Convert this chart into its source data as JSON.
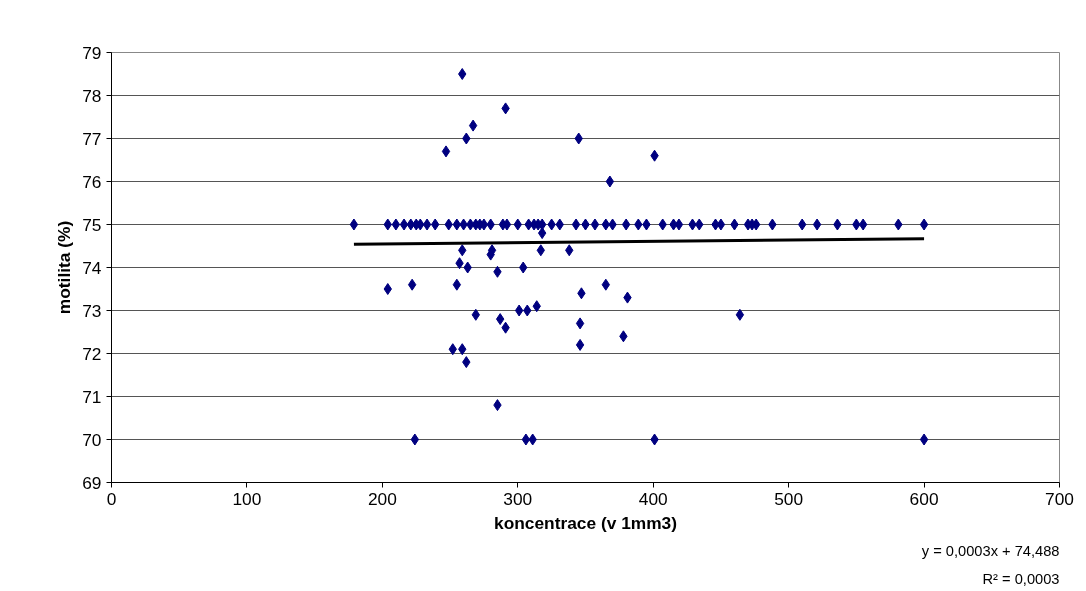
{
  "chart_data": {
    "type": "scatter",
    "xlabel": "koncentrace (v 1mm3)",
    "ylabel": "motilita (%)",
    "xlim": [
      0,
      700
    ],
    "xticks": [
      0,
      100,
      200,
      300,
      400,
      500,
      600,
      700
    ],
    "ylim": [
      69,
      79
    ],
    "yticks": [
      69,
      70,
      71,
      72,
      73,
      74,
      75,
      76,
      77,
      78,
      79
    ],
    "grid": "y",
    "marker": "diamond",
    "annotations": [
      "y = 0,0003x + 74,488",
      "R² = 0,0003"
    ],
    "series": [
      {
        "color": "#000080",
        "x": [
          179,
          204,
          210,
          216,
          221,
          225,
          228,
          233,
          239,
          249,
          255,
          260,
          265,
          269,
          272,
          275,
          280,
          289,
          292,
          300,
          308,
          312,
          315,
          318,
          325,
          331,
          343,
          350,
          357,
          365,
          370,
          380,
          389,
          395,
          407,
          415,
          419,
          429,
          434,
          446,
          450,
          460,
          470,
          473,
          476,
          488,
          510,
          521,
          536,
          550,
          555,
          581,
          600,
          259,
          267,
          262,
          247,
          291,
          345,
          401,
          368,
          259,
          257,
          263,
          204,
          222,
          255,
          252,
          259,
          262,
          224,
          281,
          280,
          285,
          304,
          317,
          318,
          338,
          269,
          287,
          291,
          301,
          307,
          314,
          347,
          346,
          346,
          365,
          381,
          378,
          285,
          306,
          311,
          401,
          464,
          600
        ],
        "values": [
          75,
          75,
          75,
          75,
          75,
          75,
          75,
          75,
          75,
          75,
          75,
          75,
          75,
          75,
          75,
          75,
          75,
          75,
          75,
          75,
          75,
          75,
          75,
          75,
          75,
          75,
          75,
          75,
          75,
          75,
          75,
          75,
          75,
          75,
          75,
          75,
          75,
          75,
          75,
          75,
          75,
          75,
          75,
          75,
          75,
          75,
          75,
          75,
          75,
          75,
          75,
          75,
          75,
          78.5,
          77.3,
          77.0,
          76.7,
          77.7,
          77.0,
          76.6,
          76.0,
          74.4,
          74.1,
          74.0,
          73.5,
          73.6,
          73.6,
          72.1,
          72.1,
          71.8,
          70.0,
          74.4,
          74.3,
          73.9,
          74.0,
          74.4,
          74.8,
          74.4,
          72.9,
          72.8,
          72.6,
          73.0,
          73.0,
          73.1,
          73.4,
          72.7,
          72.2,
          73.6,
          73.3,
          72.4,
          70.8,
          70.0,
          70.0,
          70.0,
          72.9,
          70.0
        ]
      },
      {
        "type": "line",
        "marker": "none",
        "color": "#000000",
        "x": [
          179,
          600
        ],
        "values": [
          74.54,
          74.67
        ]
      }
    ]
  }
}
